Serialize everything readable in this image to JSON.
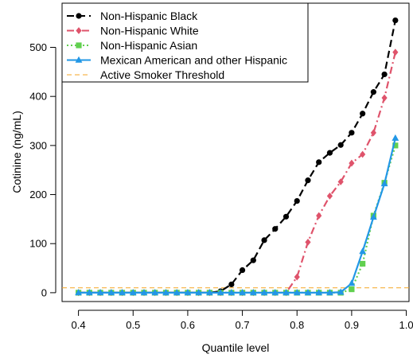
{
  "chart_data": {
    "type": "line",
    "title": "",
    "xlabel": "Quantile level",
    "ylabel": "Cotinine (ng/mL)",
    "xlim": [
      0.37,
      1.005
    ],
    "ylim": [
      -18,
      590
    ],
    "x_ticks": [
      0.4,
      0.5,
      0.6,
      0.7,
      0.8,
      0.9,
      1.0
    ],
    "x_tick_labels": [
      "0.4",
      "0.5",
      "0.6",
      "0.7",
      "0.8",
      "0.9",
      "1.0"
    ],
    "y_ticks": [
      0,
      100,
      200,
      300,
      400,
      500
    ],
    "y_tick_labels": [
      "0",
      "100",
      "200",
      "300",
      "400",
      "500"
    ],
    "grid": false,
    "legend_position": "top-left",
    "x": [
      0.4,
      0.42,
      0.44,
      0.46,
      0.48,
      0.5,
      0.52,
      0.54,
      0.56,
      0.58,
      0.6,
      0.62,
      0.64,
      0.66,
      0.68,
      0.7,
      0.72,
      0.74,
      0.76,
      0.78,
      0.8,
      0.82,
      0.84,
      0.86,
      0.88,
      0.9,
      0.92,
      0.94,
      0.96,
      0.98
    ],
    "series": [
      {
        "name": "Non-Hispanic Black",
        "color": "#000000",
        "line_style": "longdash",
        "marker": "circle",
        "values": [
          0,
          0,
          0,
          0,
          0,
          0,
          0,
          0,
          0,
          0,
          0,
          0,
          0,
          3,
          17,
          46,
          66,
          107,
          130,
          155,
          187,
          229,
          266,
          285,
          301,
          326,
          365,
          409,
          445,
          555
        ]
      },
      {
        "name": "Non-Hispanic White",
        "color": "#df536b",
        "line_style": "dashdot",
        "marker": "diamond",
        "values": [
          0,
          0,
          0,
          0,
          0,
          0,
          0,
          0,
          0,
          0,
          0,
          0,
          0,
          0,
          0,
          0,
          0,
          0,
          0,
          0,
          32,
          103,
          157,
          197,
          226,
          264,
          282,
          326,
          397,
          490
        ]
      },
      {
        "name": "Non-Hispanic Asian",
        "color": "#61d04f",
        "line_style": "dotted",
        "marker": "square",
        "values": [
          0,
          0,
          0,
          0,
          0,
          0,
          0,
          0,
          0,
          0,
          0,
          0,
          0,
          0,
          0,
          0,
          0,
          0,
          0,
          0,
          0,
          0,
          0,
          0,
          0,
          7,
          59,
          157,
          224,
          300
        ]
      },
      {
        "name": "Mexican American and other Hispanic",
        "color": "#2297e6",
        "line_style": "solid",
        "marker": "triangle",
        "values": [
          0,
          0,
          0,
          0,
          0,
          0,
          0,
          0,
          0,
          0,
          0,
          0,
          0,
          0,
          0,
          0,
          0,
          0,
          0,
          0,
          0,
          0,
          0,
          0,
          1,
          19,
          84,
          154,
          222,
          315
        ]
      }
    ],
    "reference_lines": [
      {
        "name": "Active Smoker Threshold",
        "y": 10,
        "color": "#f5a623",
        "line_style": "dashed"
      }
    ]
  }
}
